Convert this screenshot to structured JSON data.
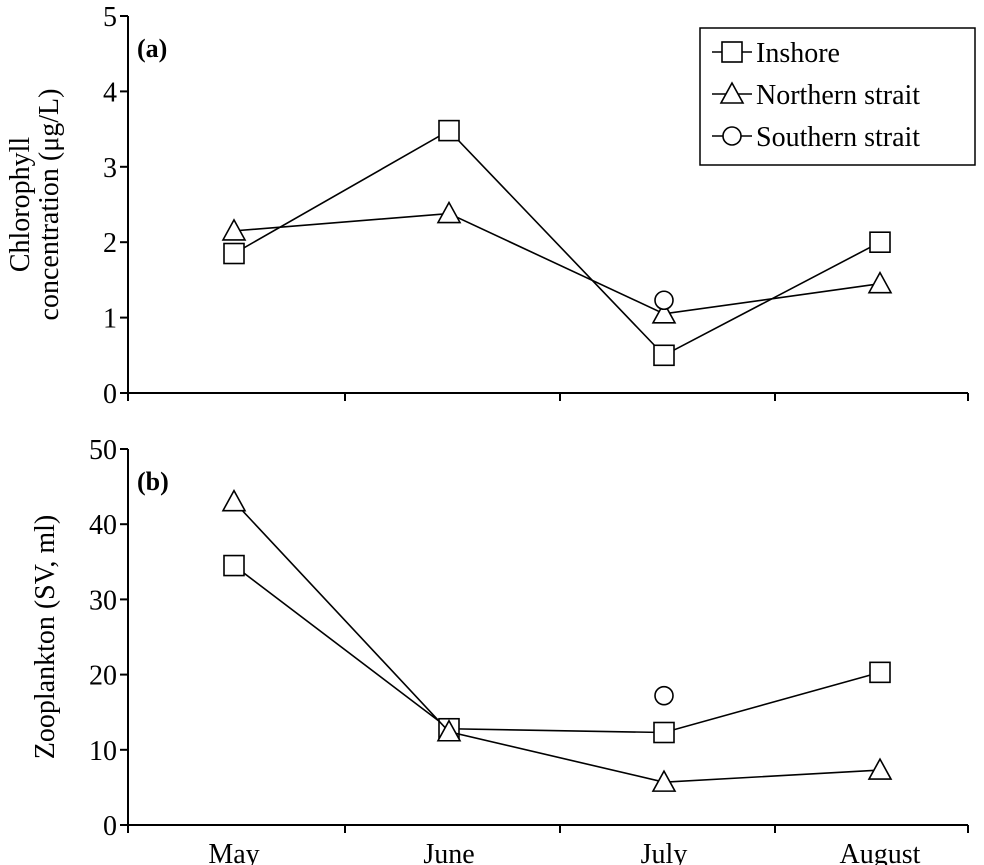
{
  "chart_data": [
    {
      "type": "line",
      "panel_label": "(a)",
      "ylabel": [
        "Chlorophyll",
        "concentration (μg/L)"
      ],
      "ylim": [
        0,
        5
      ],
      "yticks": [
        0,
        1,
        2,
        3,
        4,
        5
      ],
      "categories": [
        "May",
        "June",
        "July",
        "August"
      ],
      "series": [
        {
          "name": "Inshore",
          "marker": "square",
          "values": [
            1.85,
            3.48,
            0.5,
            2.0
          ],
          "connected": true
        },
        {
          "name": "Northern strait",
          "marker": "triangle",
          "values": [
            2.15,
            2.38,
            1.05,
            1.45
          ],
          "connected": true
        },
        {
          "name": "Southern strait",
          "marker": "circle",
          "values": [
            null,
            null,
            1.23,
            null
          ],
          "connected": false
        }
      ],
      "legend": "top-right"
    },
    {
      "type": "line",
      "panel_label": "(b)",
      "ylabel": [
        "Zooplankton (SV, ml)"
      ],
      "ylim": [
        0,
        50
      ],
      "yticks": [
        0,
        10,
        20,
        30,
        40,
        50
      ],
      "categories": [
        "May",
        "June",
        "July",
        "August"
      ],
      "series": [
        {
          "name": "Inshore",
          "marker": "square",
          "values": [
            34.5,
            12.8,
            12.3,
            20.3
          ],
          "connected": true
        },
        {
          "name": "Northern strait",
          "marker": "triangle",
          "values": [
            43.0,
            12.4,
            5.7,
            7.3
          ],
          "connected": true
        },
        {
          "name": "Southern strait",
          "marker": "circle",
          "values": [
            null,
            null,
            17.2,
            null
          ],
          "connected": false
        }
      ]
    }
  ]
}
